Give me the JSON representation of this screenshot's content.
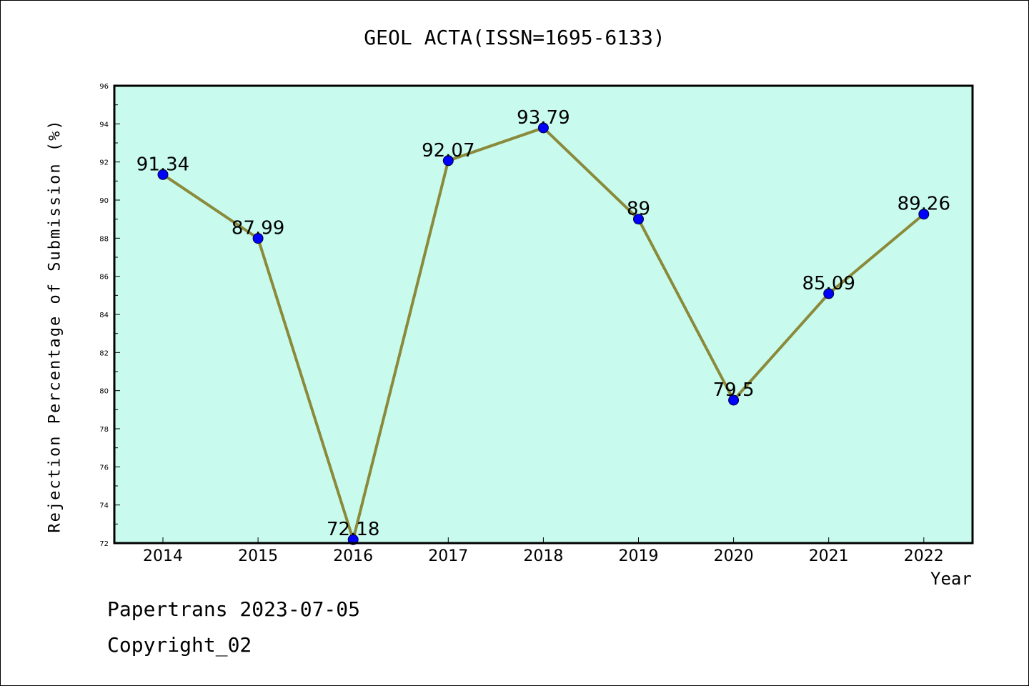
{
  "chart_data": {
    "type": "line",
    "title": "GEOL ACTA(ISSN=1695-6133)",
    "xlabel": "Year",
    "ylabel": "Rejection Percentage of Submission (%)",
    "categories": [
      "2014",
      "2015",
      "2016",
      "2017",
      "2018",
      "2019",
      "2020",
      "2021",
      "2022"
    ],
    "values": [
      91.34,
      87.99,
      72.18,
      92.07,
      93.79,
      89,
      79.5,
      85.09,
      89.26
    ],
    "data_labels": [
      "91.34",
      "87.99",
      "72.18",
      "92.07",
      "93.79",
      "89",
      "79.5",
      "85.09",
      "89.26"
    ],
    "ylim": [
      72,
      96
    ],
    "yticks": [
      "72",
      "74",
      "76",
      "78",
      "80",
      "82",
      "84",
      "86",
      "88",
      "90",
      "92",
      "94",
      "96"
    ],
    "grid": false,
    "colors": {
      "plot_background": "#c8fbee",
      "line": "#8a8a3a",
      "marker": "#0000ff"
    }
  },
  "footer": {
    "line1": "Papertrans 2023-07-05",
    "line2": "Copyright_02"
  }
}
